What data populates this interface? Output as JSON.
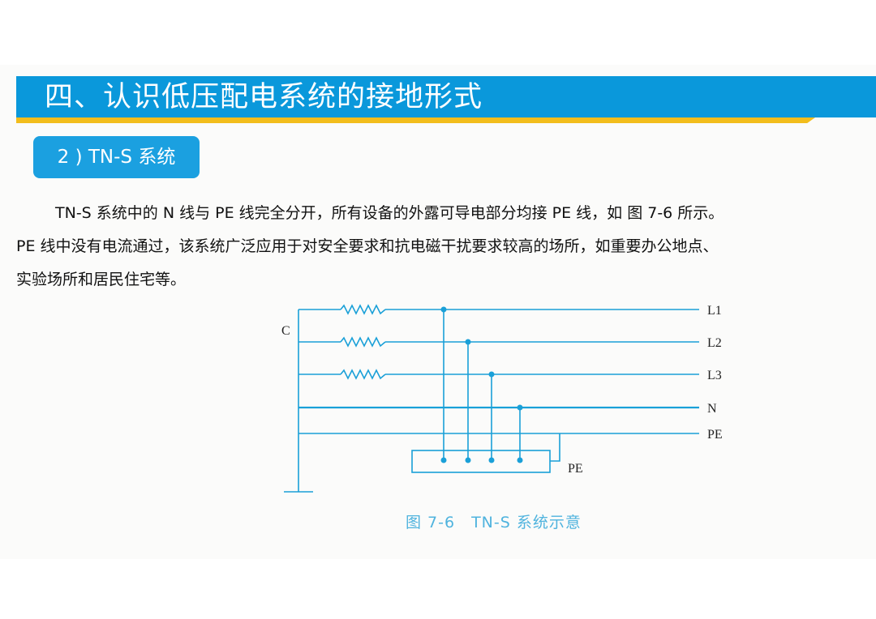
{
  "header": {
    "title": "四、认识低压配电系统的接地形式"
  },
  "section": {
    "label": "2 ) TN-S 系统"
  },
  "body": {
    "lines": [
      "TN-S 系统中的 N 线与 PE 线完全分开，所有设备的外露可导电部分均接 PE 线，如 图 7-6 所示。",
      "PE 线中没有电流通过，该系统广泛应用于对安全要求和抗电磁干扰要求较高的场所，如重要办公地点、",
      "实验场所和居民住宅等。"
    ]
  },
  "figure": {
    "source_label": "C",
    "line_labels": [
      "L1",
      "L2",
      "L3",
      "N",
      "PE"
    ],
    "equipment_label": "PE",
    "caption": "图 7-6　TN-S 系统示意",
    "line_color": "#1aa0d8"
  }
}
